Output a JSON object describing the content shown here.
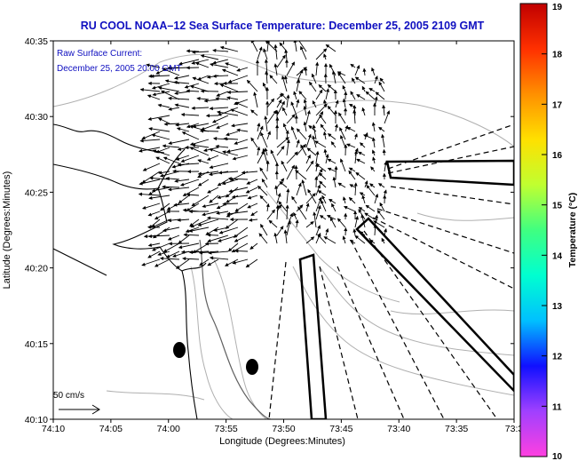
{
  "title": "RU COOL   NOAA–12  Sea Surface Temperature:  December 25, 2005 2109 GMT",
  "legend_lines": [
    "Raw Surface Current:",
    "December 25, 2005 20:00 GMT"
  ],
  "scale_label": "50 cm/s",
  "xlabel": "Longitude (Degrees:Minutes)",
  "ylabel": "Latitude (Degrees:Minutes)",
  "x_ticks": [
    "74:10",
    "74:05",
    "74:00",
    "73:55",
    "73:50",
    "73:45",
    "73:40",
    "73:35",
    "73:3"
  ],
  "y_ticks": [
    "40:35",
    "40:30",
    "40:25",
    "40:20",
    "40:15",
    "40:10"
  ],
  "colorbar": {
    "label": "Temperature (°C)",
    "ticks": [
      "19",
      "18",
      "17",
      "16",
      "15",
      "14",
      "13",
      "12",
      "11",
      "10"
    ],
    "min": 10,
    "max": 19,
    "colors": [
      "#ff40e0",
      "#a040ff",
      "#1010ff",
      "#00c0ff",
      "#00ffd0",
      "#40ff80",
      "#c0ff30",
      "#ffe000",
      "#ff9000",
      "#ff3000",
      "#c00000"
    ]
  },
  "colors": {
    "title": "#1010c0",
    "coast": "#000000",
    "bathymetry": "#b0b0b0",
    "frame": "#000000"
  }
}
